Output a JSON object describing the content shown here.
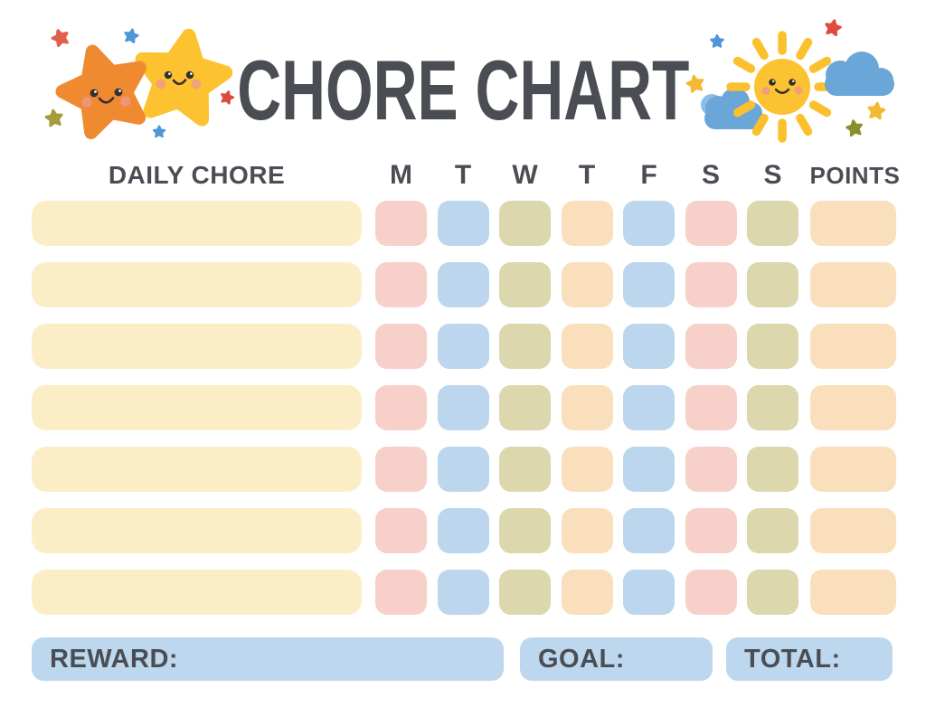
{
  "title": "CHORE CHART",
  "header": {
    "daily_chore_label": "DAILY CHORE",
    "day_labels": [
      "M",
      "T",
      "W",
      "T",
      "F",
      "S",
      "S"
    ],
    "points_label": "POINTS"
  },
  "grid": {
    "row_count": 7,
    "chore_cell_color_key": "cream",
    "day_cell_pattern": [
      "pink",
      "blue",
      "olive",
      "peach",
      "blue",
      "pink",
      "olive"
    ],
    "points_cell_color_key": "peach"
  },
  "footer": {
    "reward_label": "REWARD:",
    "goal_label": "GOAL:",
    "total_label": "TOTAL:"
  },
  "colors": {
    "background": "#ffffff",
    "text": "#4a4e54",
    "cream": "#fbeec7",
    "pink": "#f8d0ca",
    "blue": "#bcd6ee",
    "olive": "#dcd7ad",
    "peach": "#fadfbc",
    "footer_blue": "#bdd8ee",
    "orange_star": "#ef8a31",
    "yellow_star": "#fcc230",
    "coral_star": "#e2604b",
    "red_star": "#dd4b41",
    "blue_star": "#4f97d6",
    "olive_star": "#a39d3b",
    "olive_star2": "#8f8c2e",
    "yellow_small": "#f5b832",
    "sun": "#fbc331",
    "ray": "#fbc02d",
    "cloud": "#6ba6d9",
    "cloud_light": "#8cbde5",
    "face": "#33302d",
    "cheek": "#f0968c"
  },
  "decorations": {
    "left_icons": [
      "orange-star-icon",
      "yellow-star-icon",
      "sparkle-star-icons"
    ],
    "right_icons": [
      "sun-icon",
      "cloud-icon",
      "cloud-icon",
      "sparkle-star-icons"
    ]
  }
}
